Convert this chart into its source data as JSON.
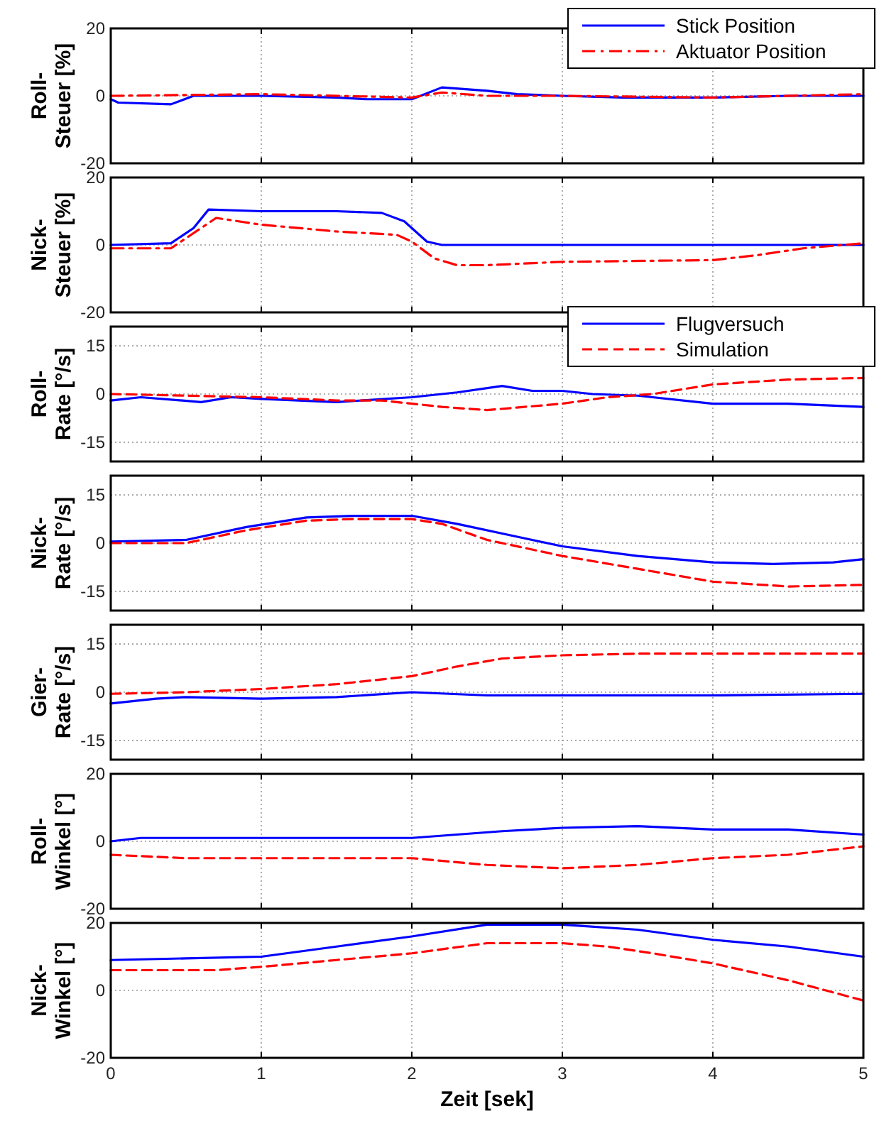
{
  "chart_data": [
    {
      "type": "line",
      "ylabel": "Roll-\nSteuer [%]",
      "xlim": [
        0,
        5
      ],
      "xticks": [
        0,
        1,
        2,
        3,
        4,
        5
      ],
      "ylim": [
        -20,
        20
      ],
      "yticks": [
        -20,
        0,
        20
      ],
      "grid": true,
      "legend": "top right",
      "tick_labels": "y",
      "series": [
        {
          "name": "Stick Position",
          "color": "#0000ff",
          "line_style": "solid",
          "x": [
            0,
            0.05,
            0.4,
            0.55,
            1,
            1.5,
            1.7,
            2,
            2.2,
            2.5,
            2.7,
            3,
            3.4,
            4,
            4.5,
            5
          ],
          "values": [
            -1,
            -2,
            -2.5,
            0,
            0,
            -0.5,
            -1,
            -1,
            2.5,
            1.5,
            0.5,
            0,
            -0.5,
            -0.5,
            0,
            0
          ]
        },
        {
          "name": "Aktuator Position",
          "color": "#ff0000",
          "line_style": "dashdot",
          "x": [
            0,
            1,
            2,
            2.2,
            2.5,
            3,
            4,
            5
          ],
          "values": [
            0,
            0.5,
            -0.5,
            1,
            0,
            0,
            -0.5,
            0.5
          ]
        }
      ]
    },
    {
      "type": "line",
      "ylabel": "Nick-\nSteuer [%]",
      "xlim": [
        0,
        5
      ],
      "xticks": [
        0,
        1,
        2,
        3,
        4,
        5
      ],
      "ylim": [
        -20,
        20
      ],
      "yticks": [
        -20,
        0,
        20
      ],
      "grid": true,
      "legend": false,
      "tick_labels": "y",
      "series": [
        {
          "color": "#0000ff",
          "line_style": "solid",
          "x": [
            0,
            0.4,
            0.55,
            0.65,
            1,
            1.5,
            1.8,
            1.95,
            2.1,
            2.2,
            3,
            4,
            5
          ],
          "values": [
            0,
            0.5,
            5,
            10.5,
            10,
            10,
            9.5,
            7,
            1,
            0,
            0,
            0,
            0
          ]
        },
        {
          "color": "#ff0000",
          "line_style": "dashdot",
          "x": [
            0,
            0.4,
            0.6,
            0.7,
            1,
            1.5,
            1.9,
            2,
            2.15,
            2.3,
            2.5,
            3,
            4,
            4.3,
            4.6,
            5
          ],
          "values": [
            -1,
            -1,
            5,
            8,
            6,
            4,
            3,
            1,
            -4,
            -6,
            -6,
            -5,
            -4.5,
            -3,
            -1,
            0.5
          ]
        }
      ]
    },
    {
      "type": "line",
      "ylabel": "Roll-\nRate [°/s]",
      "xlim": [
        0,
        5
      ],
      "xticks": [
        0,
        1,
        2,
        3,
        4,
        5
      ],
      "ylim": [
        -21,
        21
      ],
      "yticks": [
        -15,
        0,
        15
      ],
      "grid": true,
      "legend": "top right",
      "tick_labels": "y",
      "series": [
        {
          "name": "Flugversuch",
          "color": "#0000ff",
          "line_style": "solid",
          "x": [
            0,
            0.2,
            0.6,
            0.8,
            1,
            1.5,
            2,
            2.3,
            2.6,
            2.8,
            3,
            3.2,
            3.5,
            4,
            4.5,
            5
          ],
          "values": [
            -2,
            -1,
            -2.5,
            -1,
            -1.5,
            -2.5,
            -1,
            0.5,
            2.5,
            1,
            1,
            0,
            -0.5,
            -3,
            -3,
            -4
          ]
        },
        {
          "name": "Simulation",
          "color": "#ff0000",
          "line_style": "dashed",
          "x": [
            0,
            0.5,
            1,
            1.5,
            1.8,
            2.2,
            2.5,
            3,
            3.3,
            3.6,
            4,
            4.5,
            5
          ],
          "values": [
            0,
            -0.5,
            -1,
            -2,
            -2,
            -4,
            -5,
            -3,
            -1,
            0,
            3,
            4.5,
            5
          ]
        }
      ]
    },
    {
      "type": "line",
      "ylabel": "Nick-\nRate [°/s]",
      "xlim": [
        0,
        5
      ],
      "xticks": [
        0,
        1,
        2,
        3,
        4,
        5
      ],
      "ylim": [
        -21,
        21
      ],
      "yticks": [
        -15,
        0,
        15
      ],
      "grid": true,
      "legend": false,
      "tick_labels": "y",
      "series": [
        {
          "color": "#0000ff",
          "line_style": "solid",
          "x": [
            0,
            0.5,
            0.9,
            1.3,
            1.6,
            2,
            2.3,
            2.7,
            3,
            3.5,
            4,
            4.4,
            4.8,
            5
          ],
          "values": [
            0.5,
            1,
            5,
            8,
            8.5,
            8.5,
            6,
            2,
            -1,
            -4,
            -6,
            -6.5,
            -6,
            -5
          ]
        },
        {
          "color": "#ff0000",
          "line_style": "dashed",
          "x": [
            0,
            0.5,
            0.9,
            1.3,
            1.6,
            2,
            2.2,
            2.5,
            3,
            3.5,
            4,
            4.5,
            5
          ],
          "values": [
            0,
            0,
            4,
            7,
            7.5,
            7.5,
            6,
            1,
            -4,
            -8,
            -12,
            -13.5,
            -13
          ]
        }
      ]
    },
    {
      "type": "line",
      "ylabel": "Gier-\nRate [°/s]",
      "xlim": [
        0,
        5
      ],
      "xticks": [
        0,
        1,
        2,
        3,
        4,
        5
      ],
      "ylim": [
        -21,
        21
      ],
      "yticks": [
        -15,
        0,
        15
      ],
      "grid": true,
      "legend": false,
      "tick_labels": "y",
      "series": [
        {
          "color": "#0000ff",
          "line_style": "solid",
          "x": [
            0,
            0.3,
            0.5,
            1,
            1.5,
            2,
            2.5,
            3,
            4,
            5
          ],
          "values": [
            -3.5,
            -2,
            -1.5,
            -2,
            -1.5,
            0,
            -1,
            -1,
            -1,
            -0.5
          ]
        },
        {
          "color": "#ff0000",
          "line_style": "dashed",
          "x": [
            0,
            0.5,
            1,
            1.5,
            2,
            2.3,
            2.6,
            3,
            3.5,
            4,
            5
          ],
          "values": [
            -0.5,
            0,
            1,
            2.5,
            5,
            8,
            10.5,
            11.5,
            12,
            12,
            12
          ]
        }
      ]
    },
    {
      "type": "line",
      "ylabel": "Roll-\nWinkel [°]",
      "xlim": [
        0,
        5
      ],
      "xticks": [
        0,
        1,
        2,
        3,
        4,
        5
      ],
      "ylim": [
        -20,
        20
      ],
      "yticks": [
        -20,
        0,
        20
      ],
      "grid": true,
      "legend": false,
      "tick_labels": "y",
      "series": [
        {
          "color": "#0000ff",
          "line_style": "solid",
          "x": [
            0,
            0.2,
            2,
            2.3,
            2.6,
            3,
            3.5,
            4,
            4.5,
            5
          ],
          "values": [
            0,
            1,
            1,
            2,
            3,
            4,
            4.5,
            3.5,
            3.5,
            2
          ]
        },
        {
          "color": "#ff0000",
          "line_style": "dashed",
          "x": [
            0,
            0.5,
            2,
            2.5,
            3,
            3.5,
            4,
            4.5,
            5
          ],
          "values": [
            -4,
            -5,
            -5,
            -7,
            -8,
            -7,
            -5,
            -4,
            -1.5
          ]
        }
      ]
    },
    {
      "type": "line",
      "ylabel": "Nick-\nWinkel [°]",
      "xlabel": "Zeit [sek]",
      "xlim": [
        0,
        5
      ],
      "xticks": [
        0,
        1,
        2,
        3,
        4,
        5
      ],
      "ylim": [
        -20,
        20
      ],
      "yticks": [
        -20,
        0,
        20
      ],
      "grid": true,
      "legend": false,
      "series": [
        {
          "color": "#0000ff",
          "line_style": "solid",
          "x": [
            0,
            0.5,
            1,
            1.5,
            2,
            2.5,
            3,
            3.5,
            4,
            4.5,
            5
          ],
          "values": [
            9,
            9.5,
            10,
            13,
            16,
            19.5,
            19.5,
            18,
            15,
            13,
            10
          ]
        },
        {
          "color": "#ff0000",
          "line_style": "dashed",
          "x": [
            0,
            0.7,
            1,
            1.5,
            2,
            2.5,
            3,
            3.3,
            3.6,
            4,
            4.5,
            5
          ],
          "values": [
            6,
            6,
            7,
            9,
            11,
            14,
            14,
            13,
            11,
            8,
            3,
            -3
          ]
        }
      ]
    }
  ]
}
